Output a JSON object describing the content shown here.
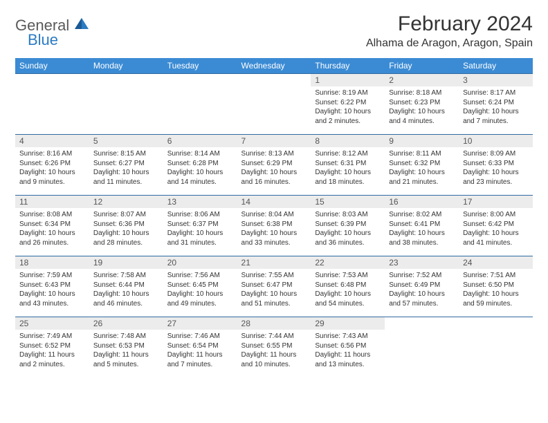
{
  "brand": {
    "name_general": "General",
    "name_blue": "Blue"
  },
  "title": "February 2024",
  "location": "Alhama de Aragon, Aragon, Spain",
  "colors": {
    "header_bg": "#3b8bd4",
    "header_text": "#ffffff",
    "row_divider": "#2f6aa0",
    "daynum_bg": "#ececec",
    "brand_gray": "#5a5a5a",
    "brand_blue": "#2b7bc3",
    "page_bg": "#ffffff",
    "body_text": "#333333"
  },
  "typography": {
    "title_fontsize": 30,
    "location_fontsize": 16,
    "header_fontsize": 12,
    "daynum_fontsize": 12,
    "body_fontsize": 10
  },
  "calendar": {
    "days_of_week": [
      "Sunday",
      "Monday",
      "Tuesday",
      "Wednesday",
      "Thursday",
      "Friday",
      "Saturday"
    ],
    "weeks": [
      [
        null,
        null,
        null,
        null,
        {
          "n": "1",
          "sunrise": "Sunrise: 8:19 AM",
          "sunset": "Sunset: 6:22 PM",
          "daylight": "Daylight: 10 hours and 2 minutes."
        },
        {
          "n": "2",
          "sunrise": "Sunrise: 8:18 AM",
          "sunset": "Sunset: 6:23 PM",
          "daylight": "Daylight: 10 hours and 4 minutes."
        },
        {
          "n": "3",
          "sunrise": "Sunrise: 8:17 AM",
          "sunset": "Sunset: 6:24 PM",
          "daylight": "Daylight: 10 hours and 7 minutes."
        }
      ],
      [
        {
          "n": "4",
          "sunrise": "Sunrise: 8:16 AM",
          "sunset": "Sunset: 6:26 PM",
          "daylight": "Daylight: 10 hours and 9 minutes."
        },
        {
          "n": "5",
          "sunrise": "Sunrise: 8:15 AM",
          "sunset": "Sunset: 6:27 PM",
          "daylight": "Daylight: 10 hours and 11 minutes."
        },
        {
          "n": "6",
          "sunrise": "Sunrise: 8:14 AM",
          "sunset": "Sunset: 6:28 PM",
          "daylight": "Daylight: 10 hours and 14 minutes."
        },
        {
          "n": "7",
          "sunrise": "Sunrise: 8:13 AM",
          "sunset": "Sunset: 6:29 PM",
          "daylight": "Daylight: 10 hours and 16 minutes."
        },
        {
          "n": "8",
          "sunrise": "Sunrise: 8:12 AM",
          "sunset": "Sunset: 6:31 PM",
          "daylight": "Daylight: 10 hours and 18 minutes."
        },
        {
          "n": "9",
          "sunrise": "Sunrise: 8:11 AM",
          "sunset": "Sunset: 6:32 PM",
          "daylight": "Daylight: 10 hours and 21 minutes."
        },
        {
          "n": "10",
          "sunrise": "Sunrise: 8:09 AM",
          "sunset": "Sunset: 6:33 PM",
          "daylight": "Daylight: 10 hours and 23 minutes."
        }
      ],
      [
        {
          "n": "11",
          "sunrise": "Sunrise: 8:08 AM",
          "sunset": "Sunset: 6:34 PM",
          "daylight": "Daylight: 10 hours and 26 minutes."
        },
        {
          "n": "12",
          "sunrise": "Sunrise: 8:07 AM",
          "sunset": "Sunset: 6:36 PM",
          "daylight": "Daylight: 10 hours and 28 minutes."
        },
        {
          "n": "13",
          "sunrise": "Sunrise: 8:06 AM",
          "sunset": "Sunset: 6:37 PM",
          "daylight": "Daylight: 10 hours and 31 minutes."
        },
        {
          "n": "14",
          "sunrise": "Sunrise: 8:04 AM",
          "sunset": "Sunset: 6:38 PM",
          "daylight": "Daylight: 10 hours and 33 minutes."
        },
        {
          "n": "15",
          "sunrise": "Sunrise: 8:03 AM",
          "sunset": "Sunset: 6:39 PM",
          "daylight": "Daylight: 10 hours and 36 minutes."
        },
        {
          "n": "16",
          "sunrise": "Sunrise: 8:02 AM",
          "sunset": "Sunset: 6:41 PM",
          "daylight": "Daylight: 10 hours and 38 minutes."
        },
        {
          "n": "17",
          "sunrise": "Sunrise: 8:00 AM",
          "sunset": "Sunset: 6:42 PM",
          "daylight": "Daylight: 10 hours and 41 minutes."
        }
      ],
      [
        {
          "n": "18",
          "sunrise": "Sunrise: 7:59 AM",
          "sunset": "Sunset: 6:43 PM",
          "daylight": "Daylight: 10 hours and 43 minutes."
        },
        {
          "n": "19",
          "sunrise": "Sunrise: 7:58 AM",
          "sunset": "Sunset: 6:44 PM",
          "daylight": "Daylight: 10 hours and 46 minutes."
        },
        {
          "n": "20",
          "sunrise": "Sunrise: 7:56 AM",
          "sunset": "Sunset: 6:45 PM",
          "daylight": "Daylight: 10 hours and 49 minutes."
        },
        {
          "n": "21",
          "sunrise": "Sunrise: 7:55 AM",
          "sunset": "Sunset: 6:47 PM",
          "daylight": "Daylight: 10 hours and 51 minutes."
        },
        {
          "n": "22",
          "sunrise": "Sunrise: 7:53 AM",
          "sunset": "Sunset: 6:48 PM",
          "daylight": "Daylight: 10 hours and 54 minutes."
        },
        {
          "n": "23",
          "sunrise": "Sunrise: 7:52 AM",
          "sunset": "Sunset: 6:49 PM",
          "daylight": "Daylight: 10 hours and 57 minutes."
        },
        {
          "n": "24",
          "sunrise": "Sunrise: 7:51 AM",
          "sunset": "Sunset: 6:50 PM",
          "daylight": "Daylight: 10 hours and 59 minutes."
        }
      ],
      [
        {
          "n": "25",
          "sunrise": "Sunrise: 7:49 AM",
          "sunset": "Sunset: 6:52 PM",
          "daylight": "Daylight: 11 hours and 2 minutes."
        },
        {
          "n": "26",
          "sunrise": "Sunrise: 7:48 AM",
          "sunset": "Sunset: 6:53 PM",
          "daylight": "Daylight: 11 hours and 5 minutes."
        },
        {
          "n": "27",
          "sunrise": "Sunrise: 7:46 AM",
          "sunset": "Sunset: 6:54 PM",
          "daylight": "Daylight: 11 hours and 7 minutes."
        },
        {
          "n": "28",
          "sunrise": "Sunrise: 7:44 AM",
          "sunset": "Sunset: 6:55 PM",
          "daylight": "Daylight: 11 hours and 10 minutes."
        },
        {
          "n": "29",
          "sunrise": "Sunrise: 7:43 AM",
          "sunset": "Sunset: 6:56 PM",
          "daylight": "Daylight: 11 hours and 13 minutes."
        },
        null,
        null
      ]
    ]
  }
}
